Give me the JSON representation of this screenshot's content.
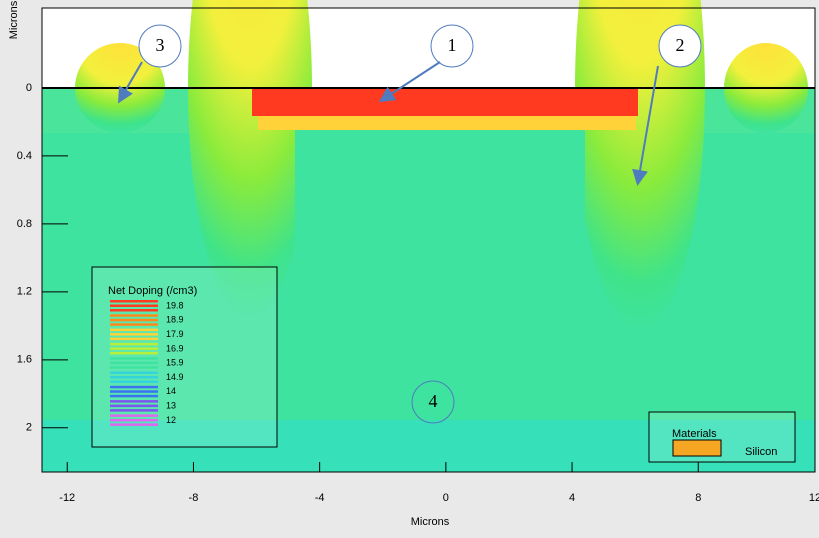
{
  "chart_data": {
    "type": "contour",
    "xlabel": "Microns",
    "ylabel": "Microns",
    "xlim": [
      -12.8,
      11.7
    ],
    "ylim": [
      -0.47,
      2.26
    ],
    "xticks": [
      -12,
      -8,
      -4,
      0,
      4,
      8,
      12
    ],
    "yticks": [
      0,
      0.4,
      0.8,
      1.2,
      1.6,
      2
    ],
    "legend": {
      "title": "Net Doping (/cm3)",
      "levels": [
        19.8,
        18.9,
        17.9,
        16.9,
        15.9,
        14.9,
        14,
        13,
        12
      ],
      "colors": [
        "#ff3a20",
        "#ff8a1a",
        "#ffd23a",
        "#b8ef3a",
        "#3fe3a0",
        "#34d4dc",
        "#3a72f0",
        "#7d55ef",
        "#e067f0"
      ]
    },
    "materials": {
      "title": "Materials",
      "items": [
        "Silicon"
      ],
      "colors": [
        "#f5a623"
      ]
    },
    "annotations": [
      "1",
      "2",
      "3",
      "4"
    ]
  }
}
